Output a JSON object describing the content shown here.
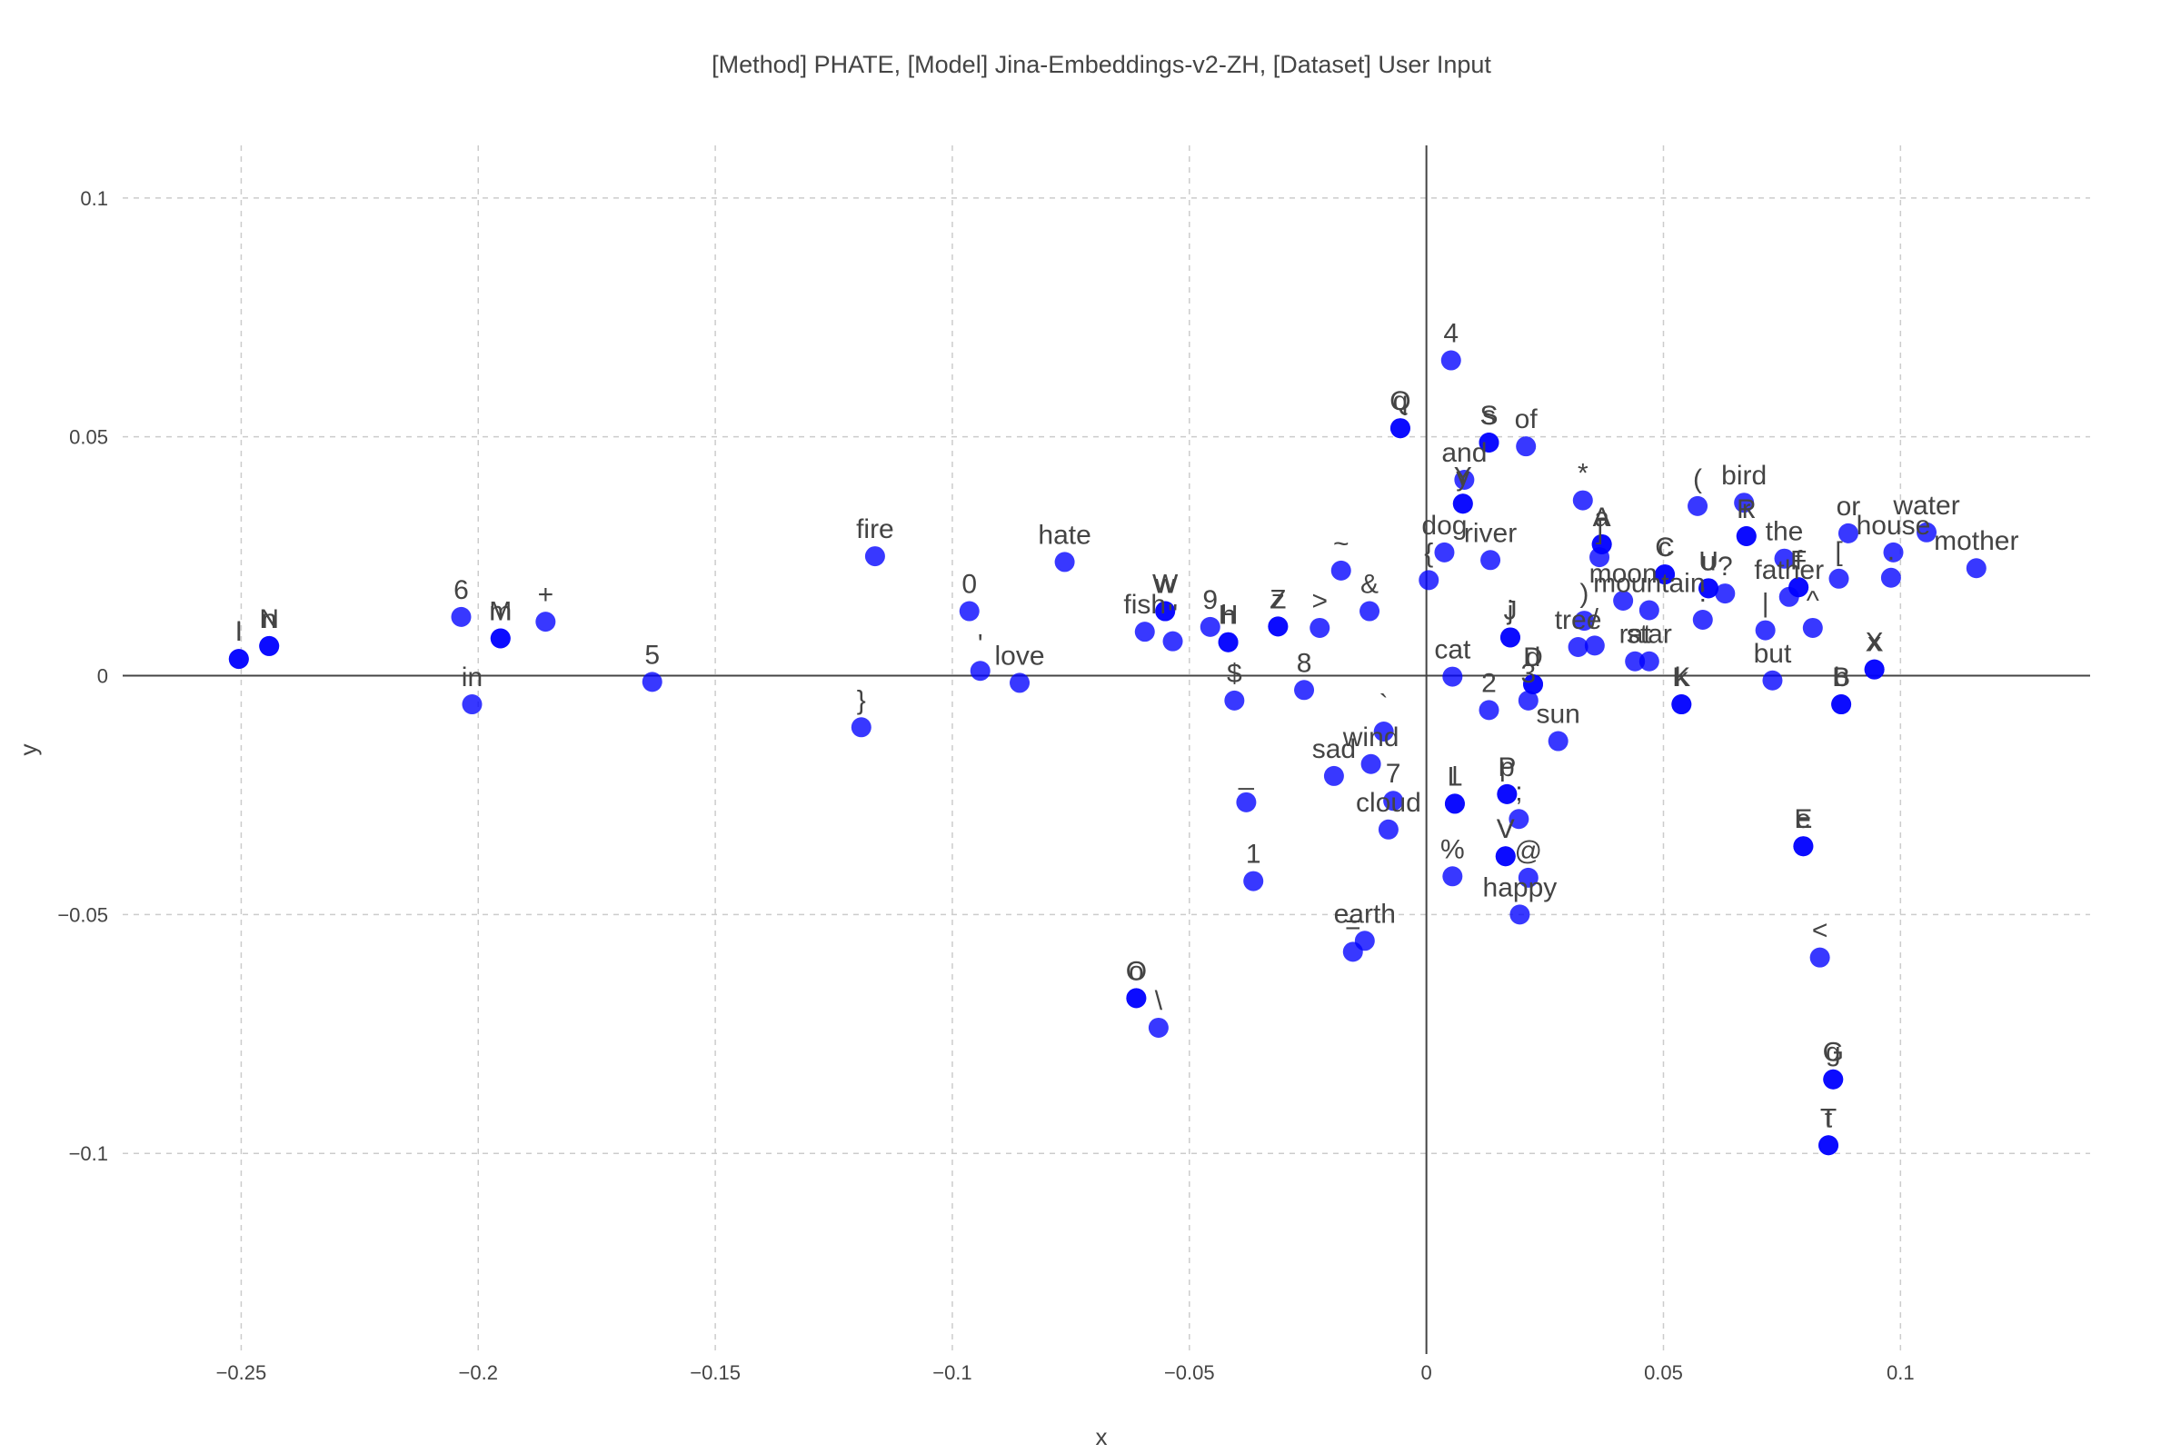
{
  "chart_data": {
    "type": "scatter",
    "title": "[Method] PHATE, [Model] Jina-Embeddings-v2-ZH, [Dataset] User Input",
    "xlabel": "x",
    "ylabel": "y",
    "xlim": [
      -0.275,
      0.14
    ],
    "ylim": [
      -0.142,
      0.111
    ],
    "xticks": [
      {
        "v": -0.25,
        "label": "−0.25"
      },
      {
        "v": -0.2,
        "label": "−0.2"
      },
      {
        "v": -0.15,
        "label": "−0.15"
      },
      {
        "v": -0.1,
        "label": "−0.1"
      },
      {
        "v": -0.05,
        "label": "−0.05"
      },
      {
        "v": 0,
        "label": "0"
      },
      {
        "v": 0.05,
        "label": "0.05"
      },
      {
        "v": 0.1,
        "label": "0.1"
      }
    ],
    "yticks": [
      {
        "v": 0.1,
        "label": "0.1"
      },
      {
        "v": 0.05,
        "label": "0.05"
      },
      {
        "v": 0,
        "label": "0"
      },
      {
        "v": -0.05,
        "label": "−0.05"
      },
      {
        "v": -0.1,
        "label": "−0.1"
      }
    ],
    "grid": true,
    "legend": false,
    "marker_color": "#0000ff",
    "text_color": "#444444",
    "points": [
      {
        "x": -0.2505,
        "y": 0.0035,
        "label": "I"
      },
      {
        "x": -0.2505,
        "y": 0.0035,
        "label": "l"
      },
      {
        "x": -0.2441,
        "y": 0.0062,
        "label": "N"
      },
      {
        "x": -0.2441,
        "y": 0.0062,
        "label": "n"
      },
      {
        "x": -0.2036,
        "y": 0.0123,
        "label": "6"
      },
      {
        "x": -0.1953,
        "y": 0.0078,
        "label": "M"
      },
      {
        "x": -0.1953,
        "y": 0.0078,
        "label": "m"
      },
      {
        "x": -0.1858,
        "y": 0.0113,
        "label": "+"
      },
      {
        "x": -0.2013,
        "y": -0.006,
        "label": "in"
      },
      {
        "x": -0.1633,
        "y": -0.0013,
        "label": "5"
      },
      {
        "x": -0.1163,
        "y": 0.025,
        "label": "fire"
      },
      {
        "x": -0.1192,
        "y": -0.0108,
        "label": "}"
      },
      {
        "x": -0.0964,
        "y": 0.0135,
        "label": "0"
      },
      {
        "x": -0.0941,
        "y": 0.001,
        "label": "'"
      },
      {
        "x": -0.0858,
        "y": -0.0015,
        "label": "love"
      },
      {
        "x": -0.0763,
        "y": 0.0238,
        "label": "hate"
      },
      {
        "x": -0.0594,
        "y": 0.0092,
        "label": "fish"
      },
      {
        "x": -0.0551,
        "y": 0.0135,
        "label": "W"
      },
      {
        "x": -0.0551,
        "y": 0.0135,
        "label": "w"
      },
      {
        "x": -0.0535,
        "y": 0.0072,
        "label": "\""
      },
      {
        "x": -0.0456,
        "y": 0.0102,
        "label": "9"
      },
      {
        "x": -0.0418,
        "y": 0.007,
        "label": "H"
      },
      {
        "x": -0.0418,
        "y": 0.007,
        "label": "h"
      },
      {
        "x": -0.0405,
        "y": -0.0052,
        "label": "$"
      },
      {
        "x": -0.0313,
        "y": 0.0103,
        "label": "Z"
      },
      {
        "x": -0.0313,
        "y": 0.0103,
        "label": "z"
      },
      {
        "x": -0.0225,
        "y": 0.01,
        "label": ">"
      },
      {
        "x": -0.0258,
        "y": -0.003,
        "label": "8"
      },
      {
        "x": -0.018,
        "y": 0.022,
        "label": "~"
      },
      {
        "x": -0.012,
        "y": 0.0135,
        "label": "&"
      },
      {
        "x": -0.009,
        "y": -0.0117,
        "label": "`"
      },
      {
        "x": -0.0117,
        "y": -0.0185,
        "label": "wind"
      },
      {
        "x": -0.0195,
        "y": -0.021,
        "label": "sad"
      },
      {
        "x": -0.007,
        "y": -0.0262,
        "label": "7"
      },
      {
        "x": -0.008,
        "y": -0.0322,
        "label": "cloud"
      },
      {
        "x": -0.038,
        "y": -0.0265,
        "label": "_"
      },
      {
        "x": -0.0365,
        "y": -0.043,
        "label": "1"
      },
      {
        "x": -0.013,
        "y": -0.0555,
        "label": "earth"
      },
      {
        "x": -0.0155,
        "y": -0.0578,
        "label": "="
      },
      {
        "x": -0.0612,
        "y": -0.0675,
        "label": "O"
      },
      {
        "x": -0.0612,
        "y": -0.0675,
        "label": "o"
      },
      {
        "x": -0.0565,
        "y": -0.0737,
        "label": "\\"
      },
      {
        "x": -0.0055,
        "y": 0.0518,
        "label": "Q"
      },
      {
        "x": -0.0055,
        "y": 0.0518,
        "label": "q"
      },
      {
        "x": 0.0052,
        "y": 0.066,
        "label": "4"
      },
      {
        "x": 0.0132,
        "y": 0.0488,
        "label": "S"
      },
      {
        "x": 0.0132,
        "y": 0.0488,
        "label": "s"
      },
      {
        "x": 0.021,
        "y": 0.048,
        "label": "of"
      },
      {
        "x": 0.008,
        "y": 0.041,
        "label": "and"
      },
      {
        "x": 0.0077,
        "y": 0.036,
        "label": "Y"
      },
      {
        "x": 0.0077,
        "y": 0.036,
        "label": "y"
      },
      {
        "x": 0.0038,
        "y": 0.0258,
        "label": "dog"
      },
      {
        "x": 0.0005,
        "y": 0.02,
        "label": "{"
      },
      {
        "x": 0.0135,
        "y": 0.0242,
        "label": "river"
      },
      {
        "x": 0.0055,
        "y": -0.0002,
        "label": "cat"
      },
      {
        "x": 0.0132,
        "y": -0.0072,
        "label": "2"
      },
      {
        "x": 0.0177,
        "y": 0.008,
        "label": "J"
      },
      {
        "x": 0.0177,
        "y": 0.008,
        "label": "j"
      },
      {
        "x": 0.0225,
        "y": -0.0018,
        "label": "D"
      },
      {
        "x": 0.0225,
        "y": -0.0018,
        "label": "d"
      },
      {
        "x": 0.0215,
        "y": -0.0052,
        "label": "3"
      },
      {
        "x": 0.0278,
        "y": -0.0137,
        "label": "sun"
      },
      {
        "x": 0.006,
        "y": -0.0268,
        "label": "L"
      },
      {
        "x": 0.006,
        "y": -0.0268,
        "label": "l"
      },
      {
        "x": 0.017,
        "y": -0.0248,
        "label": "P"
      },
      {
        "x": 0.017,
        "y": -0.0248,
        "label": "p"
      },
      {
        "x": 0.0195,
        "y": -0.03,
        "label": ";"
      },
      {
        "x": 0.0167,
        "y": -0.0378,
        "label": "V"
      },
      {
        "x": 0.0167,
        "y": -0.0378,
        "label": "v"
      },
      {
        "x": 0.0215,
        "y": -0.0423,
        "label": "@"
      },
      {
        "x": 0.0055,
        "y": -0.042,
        "label": "%"
      },
      {
        "x": 0.0197,
        "y": -0.05,
        "label": "happy"
      },
      {
        "x": 0.033,
        "y": 0.0367,
        "label": "*"
      },
      {
        "x": 0.037,
        "y": 0.0275,
        "label": "A"
      },
      {
        "x": 0.037,
        "y": 0.0275,
        "label": "a"
      },
      {
        "x": 0.0365,
        "y": 0.0248,
        "label": "]"
      },
      {
        "x": 0.0333,
        "y": 0.0115,
        "label": ")"
      },
      {
        "x": 0.0355,
        "y": 0.0063,
        "label": "/"
      },
      {
        "x": 0.032,
        "y": 0.006,
        "label": "tree"
      },
      {
        "x": 0.0415,
        "y": 0.0157,
        "label": "moon"
      },
      {
        "x": 0.047,
        "y": 0.0137,
        "label": "mountain"
      },
      {
        "x": 0.044,
        "y": 0.003,
        "label": "rat"
      },
      {
        "x": 0.047,
        "y": 0.003,
        "label": "star"
      },
      {
        "x": 0.0503,
        "y": 0.0212,
        "label": "C"
      },
      {
        "x": 0.0503,
        "y": 0.0212,
        "label": "c"
      },
      {
        "x": 0.0538,
        "y": -0.006,
        "label": "K"
      },
      {
        "x": 0.0538,
        "y": -0.006,
        "label": "k"
      },
      {
        "x": 0.0595,
        "y": 0.0183,
        "label": "U"
      },
      {
        "x": 0.0595,
        "y": 0.0183,
        "label": "u"
      },
      {
        "x": 0.063,
        "y": 0.0172,
        "label": "?"
      },
      {
        "x": 0.0583,
        "y": 0.0117,
        "label": ":"
      },
      {
        "x": 0.0572,
        "y": 0.0355,
        "label": "("
      },
      {
        "x": 0.067,
        "y": 0.0362,
        "label": "bird"
      },
      {
        "x": 0.0675,
        "y": 0.0292,
        "label": "R"
      },
      {
        "x": 0.0675,
        "y": 0.0292,
        "label": "r"
      },
      {
        "x": 0.0755,
        "y": 0.0245,
        "label": "the"
      },
      {
        "x": 0.0765,
        "y": 0.0165,
        "label": "father"
      },
      {
        "x": 0.0785,
        "y": 0.0185,
        "label": "F"
      },
      {
        "x": 0.0785,
        "y": 0.0185,
        "label": "f"
      },
      {
        "x": 0.0715,
        "y": 0.0095,
        "label": "|"
      },
      {
        "x": 0.073,
        "y": -0.001,
        "label": "but"
      },
      {
        "x": 0.0815,
        "y": 0.01,
        "label": "^"
      },
      {
        "x": 0.087,
        "y": 0.0203,
        "label": "["
      },
      {
        "x": 0.089,
        "y": 0.0298,
        "label": "or"
      },
      {
        "x": 0.0985,
        "y": 0.0258,
        "label": "house"
      },
      {
        "x": 0.098,
        "y": 0.0205,
        "label": "."
      },
      {
        "x": 0.1055,
        "y": 0.03,
        "label": "water"
      },
      {
        "x": 0.116,
        "y": 0.0225,
        "label": "mother"
      },
      {
        "x": 0.0945,
        "y": 0.0013,
        "label": "X"
      },
      {
        "x": 0.0945,
        "y": 0.0013,
        "label": "x"
      },
      {
        "x": 0.0875,
        "y": -0.006,
        "label": "B"
      },
      {
        "x": 0.0875,
        "y": -0.006,
        "label": "b"
      },
      {
        "x": 0.0795,
        "y": -0.0357,
        "label": "E"
      },
      {
        "x": 0.0795,
        "y": -0.0357,
        "label": "e"
      },
      {
        "x": 0.083,
        "y": -0.059,
        "label": "<"
      },
      {
        "x": 0.0858,
        "y": -0.0845,
        "label": "G"
      },
      {
        "x": 0.0858,
        "y": -0.0845,
        "label": "g"
      },
      {
        "x": 0.0848,
        "y": -0.0983,
        "label": "T"
      },
      {
        "x": 0.0848,
        "y": -0.0983,
        "label": "t"
      }
    ]
  }
}
